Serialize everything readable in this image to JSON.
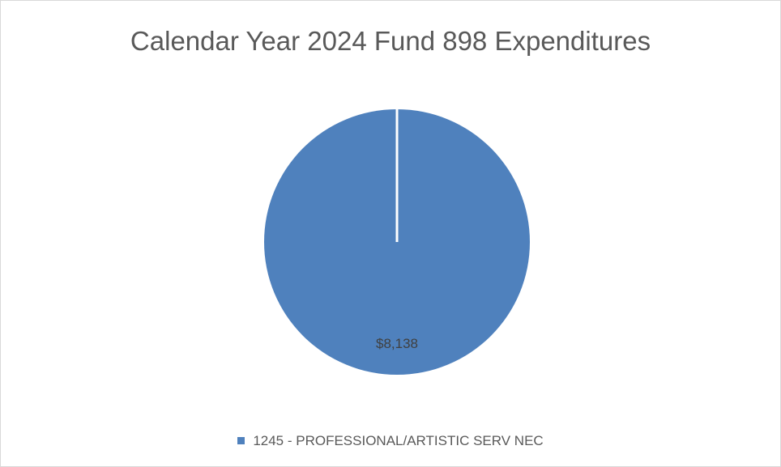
{
  "chart_data": {
    "type": "pie",
    "title": "Calendar Year 2024 Fund 898 Expenditures",
    "slices": [
      {
        "name": "1245 - PROFESSIONAL/ARTISTIC SERV NEC",
        "value": 8138,
        "label": "$8,138",
        "color": "#4f81bd"
      }
    ],
    "legend_position": "bottom"
  }
}
